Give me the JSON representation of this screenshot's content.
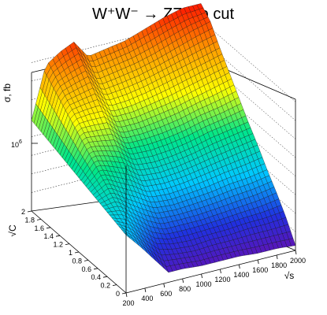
{
  "chart_data": {
    "type": "surface",
    "title": "W⁺W⁻ → ZZ, no cut",
    "xlabel": "√s",
    "ylabel": "√C",
    "zlabel": "σ, fb",
    "x_ticks": [
      "200",
      "400",
      "600",
      "800",
      "1000",
      "1200",
      "1400",
      "1600",
      "1800",
      "2000"
    ],
    "y_ticks": [
      "0",
      "0.2",
      "0.4",
      "0.6",
      "0.8",
      "1",
      "1.2",
      "1.4",
      "1.6",
      "1.8",
      "2"
    ],
    "z_tick_label": "10^6",
    "xlim": [
      200,
      2000
    ],
    "ylim": [
      0,
      2
    ],
    "z_log_scale": true,
    "grid": true,
    "colormap": [
      "#6a0dad",
      "#2030e0",
      "#00c8ff",
      "#00e68a",
      "#ffff00",
      "#ff9900",
      "#ff1a00"
    ],
    "x": [
      200,
      350,
      500,
      650,
      800,
      1000,
      1200,
      1400,
      1600,
      1800,
      2000
    ],
    "y": [
      0,
      0.2,
      0.4,
      0.6,
      0.8,
      1.0,
      1.2,
      1.4,
      1.6,
      1.8,
      2.0
    ],
    "z_norm": [
      [
        0.35,
        0.26,
        0.16,
        0.06,
        0.06,
        0.05,
        0.05,
        0.05,
        0.04,
        0.04,
        0.03
      ],
      [
        0.37,
        0.32,
        0.23,
        0.15,
        0.13,
        0.12,
        0.13,
        0.13,
        0.14,
        0.14,
        0.15
      ],
      [
        0.39,
        0.38,
        0.31,
        0.24,
        0.2,
        0.2,
        0.2,
        0.21,
        0.22,
        0.23,
        0.25
      ],
      [
        0.41,
        0.44,
        0.38,
        0.33,
        0.28,
        0.27,
        0.28,
        0.29,
        0.31,
        0.32,
        0.34
      ],
      [
        0.43,
        0.5,
        0.46,
        0.42,
        0.36,
        0.35,
        0.36,
        0.38,
        0.4,
        0.42,
        0.44
      ],
      [
        0.45,
        0.56,
        0.54,
        0.51,
        0.44,
        0.43,
        0.44,
        0.46,
        0.49,
        0.51,
        0.53
      ],
      [
        0.47,
        0.62,
        0.61,
        0.6,
        0.52,
        0.52,
        0.53,
        0.55,
        0.58,
        0.6,
        0.63
      ],
      [
        0.49,
        0.68,
        0.69,
        0.69,
        0.6,
        0.6,
        0.62,
        0.64,
        0.67,
        0.7,
        0.73
      ],
      [
        0.51,
        0.74,
        0.76,
        0.78,
        0.68,
        0.69,
        0.71,
        0.74,
        0.77,
        0.8,
        0.83
      ],
      [
        0.53,
        0.8,
        0.84,
        0.87,
        0.76,
        0.78,
        0.8,
        0.83,
        0.87,
        0.91,
        0.94
      ],
      [
        0.55,
        0.86,
        0.92,
        0.96,
        0.85,
        0.87,
        0.89,
        0.93,
        0.97,
        1.0,
        1.0
      ]
    ]
  }
}
